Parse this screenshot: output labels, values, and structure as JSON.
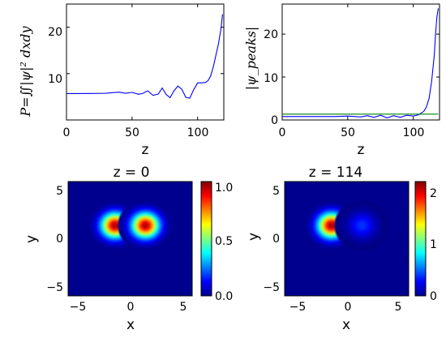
{
  "chart_data": [
    {
      "type": "line",
      "xlabel": "z",
      "ylabel": "P=∬|ψ|² dxdy",
      "xlim": [
        0,
        120
      ],
      "ylim": [
        0,
        25
      ],
      "xticks": [
        "0",
        "50",
        "100"
      ],
      "yticks": [
        "10",
        "20"
      ],
      "series": [
        {
          "color": "#0000ff",
          "x": [
            0,
            10,
            20,
            30,
            35,
            40,
            45,
            50,
            55,
            58,
            62,
            66,
            70,
            73,
            76,
            79,
            82,
            85,
            88,
            91,
            94,
            97,
            100,
            103,
            106,
            108,
            110,
            112,
            114,
            116,
            118,
            119
          ],
          "y": [
            5.7,
            5.7,
            5.72,
            5.75,
            5.9,
            6.0,
            5.75,
            5.95,
            5.55,
            5.7,
            6.3,
            5.3,
            5.6,
            6.9,
            5.5,
            4.8,
            6.3,
            7.3,
            6.6,
            4.9,
            4.7,
            6.5,
            8.0,
            8.0,
            8.1,
            8.5,
            9.5,
            11.5,
            14.0,
            16.5,
            20.0,
            22.8
          ]
        }
      ]
    },
    {
      "type": "line",
      "xlabel": "z",
      "ylabel": "|ψ_peaks|",
      "xlim": [
        0,
        120
      ],
      "ylim": [
        0,
        27
      ],
      "xticks": [
        "0",
        "50",
        "100"
      ],
      "yticks": [
        "0",
        "10",
        "20"
      ],
      "series": [
        {
          "color": "#0000ff",
          "x": [
            0,
            20,
            40,
            50,
            60,
            65,
            70,
            75,
            80,
            85,
            90,
            95,
            100,
            104,
            108,
            110,
            112,
            114,
            116,
            117,
            118,
            119
          ],
          "y": [
            0.8,
            0.8,
            0.8,
            0.9,
            0.7,
            1.0,
            0.6,
            1.1,
            0.5,
            1.0,
            0.6,
            1.1,
            0.9,
            1.2,
            2.0,
            3.0,
            5.0,
            9.0,
            15.0,
            20.0,
            24.0,
            26.0
          ]
        },
        {
          "color": "#008000",
          "x": [
            0,
            119
          ],
          "y": [
            1.35,
            1.35
          ]
        }
      ]
    },
    {
      "type": "heatmap",
      "title": "z = 0",
      "xlabel": "x",
      "ylabel": "y",
      "xlim": [
        -6.5,
        6.5
      ],
      "ylim": [
        -6.5,
        6.5
      ],
      "xticks": [
        "−5",
        "0",
        "5"
      ],
      "yticks": [
        "5",
        "0",
        "−5"
      ],
      "colorbar": {
        "min": 0,
        "max": 1.05,
        "ticks": [
          "1.0",
          "0.5",
          "0.0"
        ]
      },
      "peaks": [
        {
          "x": -1.6,
          "y": 1.5,
          "amplitude": 1.0
        },
        {
          "x": 1.6,
          "y": 1.5,
          "amplitude": 1.0
        }
      ]
    },
    {
      "type": "heatmap",
      "title": "z = 114",
      "xlabel": "x",
      "ylabel": "y",
      "xlim": [
        -6.5,
        6.5
      ],
      "ylim": [
        -6.5,
        6.5
      ],
      "xticks": [
        "−5",
        "0",
        "5"
      ],
      "yticks": [
        "5",
        "0",
        "−5"
      ],
      "colorbar": {
        "min": 0,
        "max": 2.3,
        "ticks": [
          "2",
          "1",
          "0"
        ]
      },
      "peaks": [
        {
          "x": -1.6,
          "y": 1.5,
          "amplitude": 2.2
        },
        {
          "x": 1.6,
          "y": 1.5,
          "amplitude": 0.4
        }
      ]
    }
  ]
}
